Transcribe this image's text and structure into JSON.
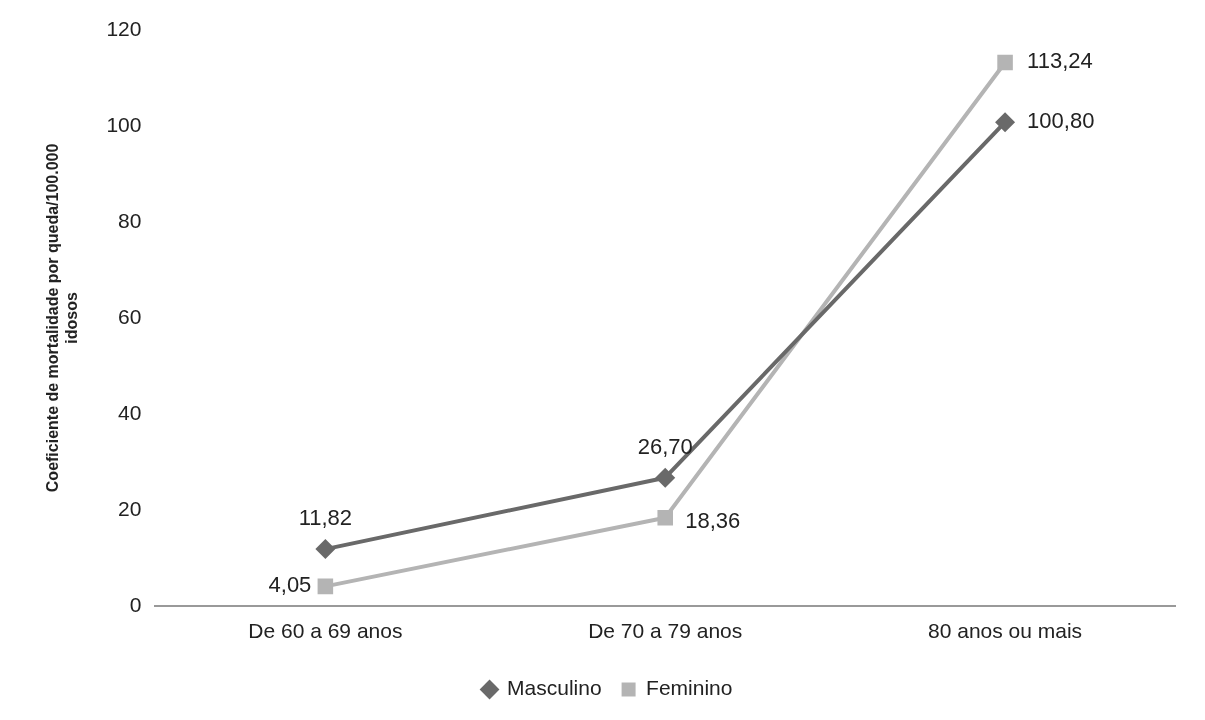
{
  "chart_data": {
    "type": "line",
    "ylabel": "Coeficiente de mortalidade por queda/100.000 idosos",
    "categories": [
      "De 60 a 69 anos",
      "De 70 a 79 anos",
      "80 anos ou mais"
    ],
    "ylim": [
      0,
      120
    ],
    "yticks": [
      0,
      20,
      40,
      60,
      80,
      100,
      120
    ],
    "grid": false,
    "legend": "bottom",
    "series": [
      {
        "name": "Masculino",
        "color": "#696969",
        "marker": "diamond",
        "values": [
          11.82,
          26.7,
          100.8
        ],
        "value_labels": [
          "11,82",
          "26,70",
          "100,80"
        ]
      },
      {
        "name": "Feminino",
        "color": "#b4b4b4",
        "marker": "square",
        "values": [
          4.05,
          18.36,
          113.24
        ],
        "value_labels": [
          "4,05",
          "18,36",
          "113,24"
        ]
      }
    ]
  }
}
